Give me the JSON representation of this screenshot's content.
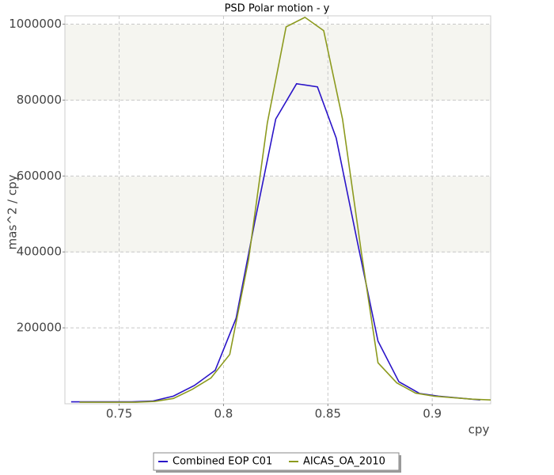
{
  "chart_data": {
    "type": "line",
    "title": "PSD Polar motion - y",
    "x_label": "cpy",
    "y_label": "mas^2 / cpy",
    "xlim": [
      0.724,
      0.928
    ],
    "ylim": [
      0,
      1022000
    ],
    "xticks": [
      0.75,
      0.8,
      0.85,
      0.9
    ],
    "yticks": [
      200000,
      400000,
      600000,
      800000,
      1000000
    ],
    "grid": true,
    "legend": "bottom",
    "series": [
      {
        "name": "Combined EOP C01",
        "color": "#2a14c8",
        "x": [
          0.727,
          0.737,
          0.747,
          0.756,
          0.766,
          0.776,
          0.786,
          0.796,
          0.806,
          0.815,
          0.825,
          0.835,
          0.845,
          0.854,
          0.864,
          0.874,
          0.884,
          0.894,
          0.903,
          0.913,
          0.923
        ],
        "values": [
          5000,
          5000,
          5000,
          5000,
          7000,
          20000,
          48000,
          88000,
          225000,
          480000,
          750000,
          843000,
          835000,
          700000,
          430000,
          165000,
          58000,
          27000,
          20000,
          15000,
          10000
        ]
      },
      {
        "name": "AICAS_OA_2010",
        "color": "#8c9a1e",
        "x": [
          0.731,
          0.74,
          0.749,
          0.758,
          0.767,
          0.776,
          0.785,
          0.794,
          0.803,
          0.812,
          0.821,
          0.83,
          0.839,
          0.848,
          0.857,
          0.866,
          0.874,
          0.883,
          0.892,
          0.901,
          0.91,
          0.919,
          0.928
        ],
        "values": [
          4000,
          4000,
          4000,
          4000,
          6000,
          14000,
          38000,
          68000,
          130000,
          380000,
          740000,
          993000,
          1018000,
          983000,
          750000,
          400000,
          108000,
          55000,
          28000,
          20000,
          16000,
          12000,
          10000
        ]
      }
    ]
  }
}
